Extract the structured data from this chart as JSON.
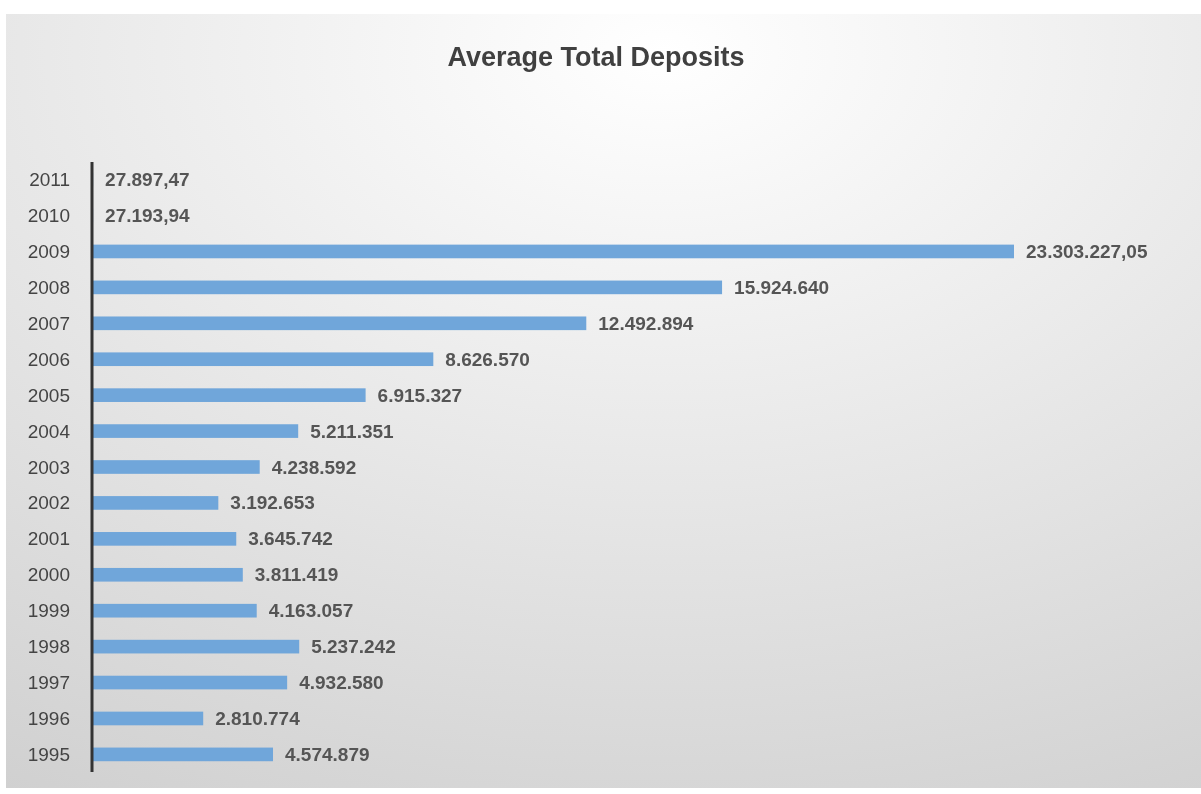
{
  "chart_data": {
    "type": "bar",
    "orientation": "horizontal",
    "title": "Average Total Deposits",
    "categories": [
      "2011",
      "2010",
      "2009",
      "2008",
      "2007",
      "2006",
      "2005",
      "2004",
      "2003",
      "2002",
      "2001",
      "2000",
      "1999",
      "1998",
      "1997",
      "1996",
      "1995"
    ],
    "values": [
      27897.47,
      27193.94,
      23303227.05,
      15924640,
      12492894,
      8626570,
      6915327,
      5211351,
      4238592,
      3192653,
      3645742,
      3811419,
      4163057,
      5237242,
      4932580,
      2810774,
      4574879
    ],
    "value_labels": [
      "27.897,47",
      "27.193,94",
      "23.303.227,05",
      "15.924.640",
      "12.492.894",
      "8.626.570",
      "6.915.327",
      "5.211.351",
      "4.238.592",
      "3.192.653",
      "3.645.742",
      "3.811.419",
      "4.163.057",
      "5.237.242",
      "4.932.580",
      "2.810.774",
      "4.574.879"
    ],
    "color": "#70a6da"
  }
}
